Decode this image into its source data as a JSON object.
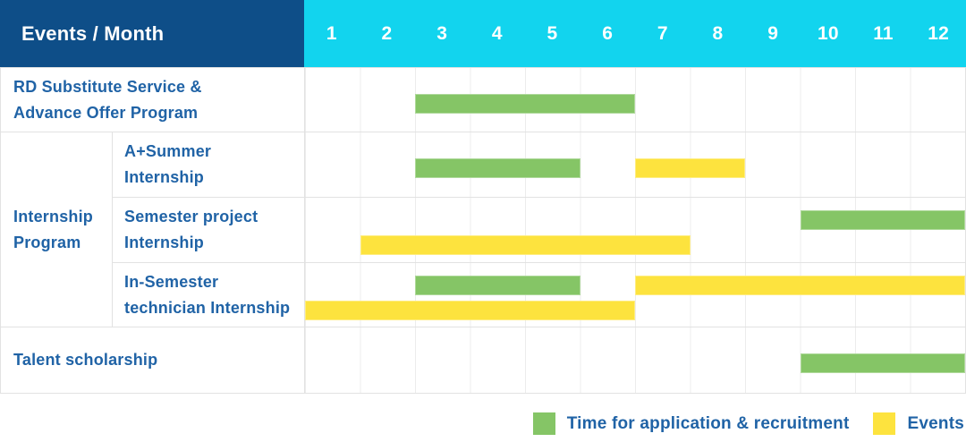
{
  "header": {
    "title": "Events / Month",
    "months": [
      "1",
      "2",
      "3",
      "4",
      "5",
      "6",
      "7",
      "8",
      "9",
      "10",
      "11",
      "12"
    ]
  },
  "labels": {
    "rd": "RD Substitute Service &\nAdvance Offer Program",
    "internship_group": "Internship\nProgram",
    "a_summer": "A+Summer\nInternship",
    "semester_project": "Semester project\nInternship",
    "in_semester": "In-Semester\ntechnician Internship",
    "talent": "Talent scholarship"
  },
  "legend": {
    "items": [
      {
        "label": "Time for application & recruitment",
        "color": "#85C566"
      },
      {
        "label": "Events",
        "color": "#FDE33E"
      }
    ]
  },
  "colors": {
    "header_bg": "#0E4E88",
    "months_bg": "#12D4EE",
    "text_blue": "#2063A6",
    "green": "#85C566",
    "yellow": "#FDE33E",
    "border": "#E2E2E2",
    "gridline": "#ECECEC"
  },
  "chart_data": {
    "type": "bar",
    "subtype": "gantt",
    "title": "Events / Month",
    "x_axis": {
      "label": "Month",
      "ticks": [
        1,
        2,
        3,
        4,
        5,
        6,
        7,
        8,
        9,
        10,
        11,
        12
      ],
      "range": [
        1,
        12
      ],
      "grid": true
    },
    "legend_position": "bottom-right",
    "series_names": [
      "Time for application & recruitment",
      "Events"
    ],
    "rows": [
      {
        "label": "RD Substitute Service & Advance Offer Program",
        "group": "",
        "bars": [
          {
            "series": "Time for application & recruitment",
            "months": [
              3,
              6
            ],
            "track": "single"
          }
        ]
      },
      {
        "label": "A+Summer Internship",
        "group": "Internship Program",
        "bars": [
          {
            "series": "Time for application & recruitment",
            "months": [
              3,
              5
            ],
            "track": "single"
          },
          {
            "series": "Events",
            "months": [
              7,
              8
            ],
            "track": "single"
          }
        ]
      },
      {
        "label": "Semester project Internship",
        "group": "Internship Program",
        "bars": [
          {
            "series": "Time for application & recruitment",
            "months": [
              10,
              12
            ],
            "track": "top"
          },
          {
            "series": "Events",
            "months": [
              2,
              7
            ],
            "track": "bottom"
          }
        ]
      },
      {
        "label": "In-Semester technician Internship",
        "group": "Internship Program",
        "bars": [
          {
            "series": "Time for application & recruitment",
            "months": [
              3,
              5
            ],
            "track": "top"
          },
          {
            "series": "Events",
            "months": [
              7,
              12
            ],
            "track": "top"
          },
          {
            "series": "Events",
            "months": [
              1,
              6
            ],
            "track": "bottom"
          }
        ]
      },
      {
        "label": "Talent scholarship",
        "group": "",
        "bars": [
          {
            "series": "Time for application & recruitment",
            "months": [
              10,
              12
            ],
            "track": "single"
          }
        ]
      }
    ]
  }
}
